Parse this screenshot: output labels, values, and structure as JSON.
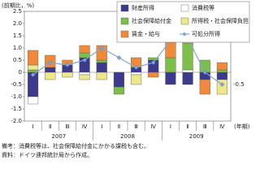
{
  "chart_data": {
    "type": "bar",
    "stacked": true,
    "y_label": "(前期比，%)",
    "x_label": "(年期)",
    "categories": [
      "Ⅰ",
      "Ⅱ",
      "Ⅲ",
      "Ⅳ",
      "Ⅰ",
      "Ⅱ",
      "Ⅲ",
      "Ⅳ",
      "Ⅰ",
      "Ⅱ",
      "Ⅲ",
      "Ⅳ"
    ],
    "years": [
      "2007",
      "2008",
      "2009"
    ],
    "series": [
      {
        "name": "財産所得",
        "color": "#3b3a8c",
        "values": [
          -1.0,
          0.2,
          0.3,
          0.6,
          0.4,
          -0.6,
          0.2,
          0.5,
          -0.5,
          -0.5,
          -0.3,
          -0.3
        ]
      },
      {
        "name": "消費税等",
        "color": "#ffffff",
        "values": [
          -0.3,
          0.0,
          0.0,
          -0.1,
          0.0,
          0.0,
          -0.1,
          0.0,
          0.0,
          0.1,
          0.0,
          0.0
        ]
      },
      {
        "name": "社会保障給付金",
        "color": "#7cc04a",
        "values": [
          0.1,
          0.0,
          0.0,
          0.2,
          0.1,
          -0.3,
          0.0,
          0.1,
          0.6,
          1.1,
          0.5,
          0.1
        ]
      },
      {
        "name": "所得税・社会保障負担",
        "color": "#eee88a",
        "values": [
          0.2,
          -0.3,
          -0.2,
          -0.2,
          -0.3,
          0.0,
          -0.4,
          0.0,
          0.0,
          0.2,
          0.0,
          -0.6
        ]
      },
      {
        "name": "賃金・給与",
        "color": "#f08a3a",
        "values": [
          0.6,
          0.5,
          0.2,
          0.3,
          0.6,
          0.0,
          0.4,
          -0.2,
          1.2,
          0.5,
          -0.6,
          0.3
        ]
      },
      {
        "name": "可処分所得",
        "color": "#7fa6d8",
        "type": "line",
        "values": [
          -0.1,
          0.4,
          0.3,
          0.5,
          1.0,
          0.6,
          0.2,
          0.4,
          1.3,
          1.4,
          0.0,
          -0.5
        ]
      }
    ],
    "annotation": "-0.5",
    "ylim": [
      -2,
      2.5
    ],
    "yticks": [
      {
        "value": -2,
        "label": "-2.0"
      },
      -1.5,
      {
        "value": -1,
        "label": "-1.0"
      },
      -0.5,
      0,
      0.5,
      {
        "value": 1,
        "label": "1.0"
      },
      1.5,
      {
        "value": 2,
        "label": "2.0"
      },
      2.5
    ],
    "notes": [
      "備考：消費税等は、社会保障給付金にかかる課税も含む。",
      "資料：ドイツ連邦統計局から作成。"
    ]
  }
}
